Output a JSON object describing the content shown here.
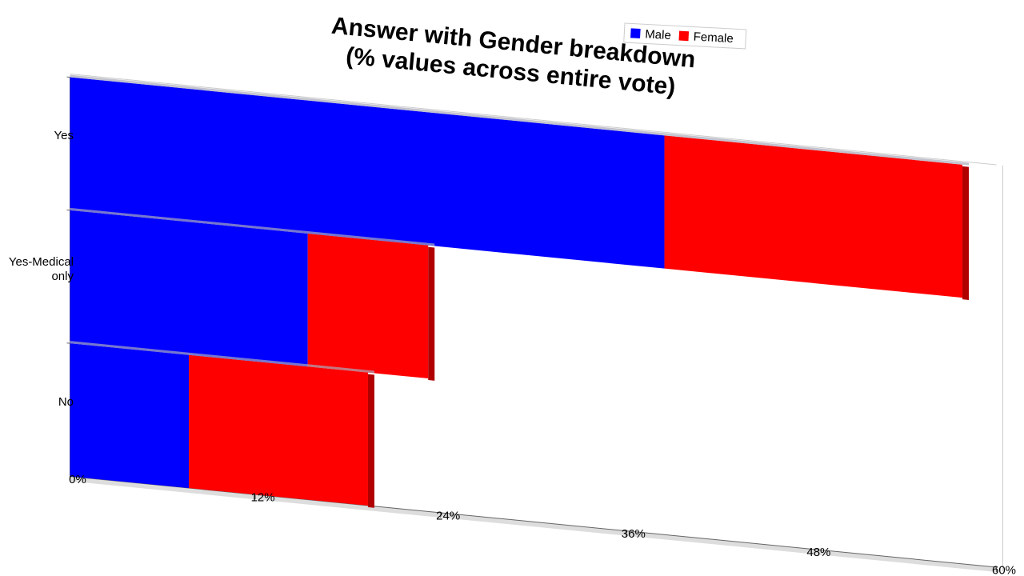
{
  "chart_data": {
    "type": "stacked-bar-horizontal",
    "title": "Answer with Gender breakdown\n(% values across entire vote)",
    "categories": [
      "Yes",
      "Yes-Medical only",
      "No"
    ],
    "series": [
      {
        "name": "Male",
        "color": "#0000ff",
        "values": [
          38.5,
          15.4,
          7.7
        ]
      },
      {
        "name": "Female",
        "color": "#ff0000",
        "values": [
          19.3,
          7.8,
          11.6
        ]
      }
    ],
    "xlim": [
      0,
      60
    ],
    "xticks": [
      {
        "value": 0,
        "label": "0%"
      },
      {
        "value": 12,
        "label": "12%"
      },
      {
        "value": 24,
        "label": "24%"
      },
      {
        "value": 36,
        "label": "36%"
      },
      {
        "value": 48,
        "label": "48%"
      },
      {
        "value": 60,
        "label": "60%"
      }
    ],
    "legend": "top-right"
  }
}
